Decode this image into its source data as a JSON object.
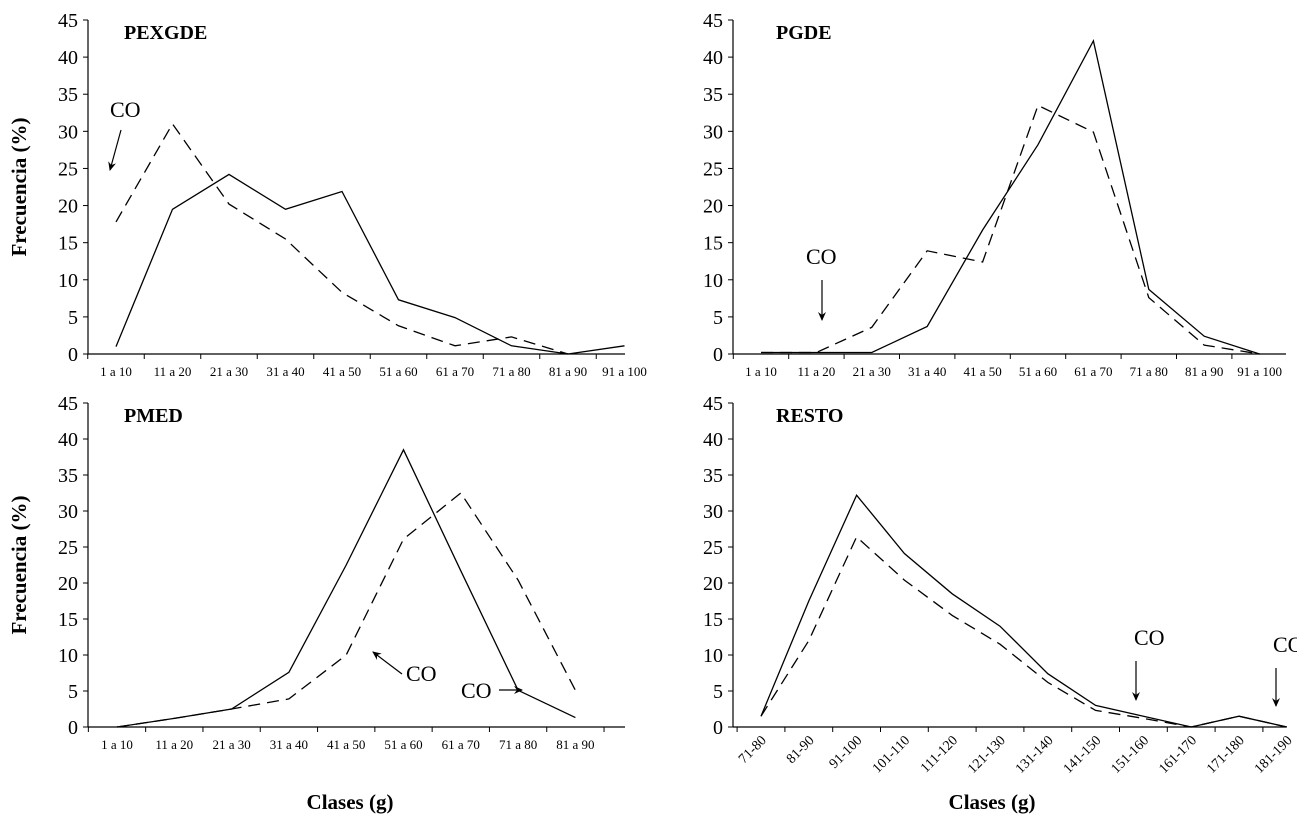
{
  "chart_data": [
    {
      "type": "line",
      "title": "PEXGDE",
      "ylabel": "Frecuencia (%)",
      "xlabel": "",
      "ylim": [
        0,
        45
      ],
      "yticks": [
        0,
        5,
        10,
        15,
        20,
        25,
        30,
        35,
        40,
        45
      ],
      "categories": [
        "1 a 10",
        "11 a 20",
        "21 a 30",
        "31 a 40",
        "41 a 50",
        "51 a 60",
        "61 a 70",
        "71 a 80",
        "81 a 90",
        "91 a 100"
      ],
      "series": [
        {
          "style": "solid",
          "values": [
            1,
            19.5,
            24.2,
            19.5,
            21.9,
            7.3,
            4.9,
            1.1,
            0,
            1.1
          ]
        },
        {
          "style": "dashed",
          "values": [
            17.8,
            31,
            20.2,
            15.5,
            8.3,
            3.8,
            1.1,
            2.3,
            0,
            null
          ]
        }
      ],
      "annotations": [
        {
          "text": "CO",
          "arrow": "down"
        }
      ]
    },
    {
      "type": "line",
      "title": "PGDE",
      "ylabel": "",
      "xlabel": "",
      "ylim": [
        0,
        45
      ],
      "yticks": [
        0,
        5,
        10,
        15,
        20,
        25,
        30,
        35,
        40,
        45
      ],
      "categories": [
        "1 a 10",
        "11 a 20",
        "21 a 30",
        "31 a 40",
        "41 a 50",
        "51 a 60",
        "61 a 70",
        "71 a 80",
        "81 a 90",
        "91 a 100"
      ],
      "series": [
        {
          "style": "solid",
          "values": [
            0.2,
            0.2,
            0.2,
            3.7,
            16.7,
            28.2,
            42.2,
            8.7,
            2.4,
            0
          ]
        },
        {
          "style": "dashed",
          "values": [
            0.2,
            0.2,
            3.6,
            13.9,
            12.4,
            33.5,
            29.9,
            7.6,
            1.2,
            0
          ]
        }
      ],
      "annotations": [
        {
          "text": "CO",
          "arrow": "down"
        }
      ]
    },
    {
      "type": "line",
      "title": "PMED",
      "ylabel": "Frecuencia (%)",
      "xlabel": "Clases (g)",
      "ylim": [
        0,
        45
      ],
      "yticks": [
        0,
        5,
        10,
        15,
        20,
        25,
        30,
        35,
        40,
        45
      ],
      "categories": [
        "1 a 10",
        "11 a 20",
        "21 a 30",
        "31 a 40",
        "41 a 50",
        "51 a 60",
        "61 a 70",
        "71 a 80",
        "81 a 90"
      ],
      "series": [
        {
          "style": "solid",
          "values": [
            0,
            1.2,
            2.5,
            7.6,
            22.5,
            38.5,
            21.7,
            5.1,
            1.3
          ]
        },
        {
          "style": "dashed",
          "values": [
            0,
            1.2,
            2.5,
            3.9,
            10,
            26.1,
            32.5,
            20.4,
            5.1
          ]
        }
      ],
      "annotations": [
        {
          "text": "CO",
          "arrow": "up-left"
        },
        {
          "text": "CO",
          "arrow": "right"
        }
      ]
    },
    {
      "type": "line",
      "title": "RESTO",
      "ylabel": "",
      "xlabel": "Clases (g)",
      "ylim": [
        0,
        45
      ],
      "yticks": [
        0,
        5,
        10,
        15,
        20,
        25,
        30,
        35,
        40,
        45
      ],
      "categories": [
        "71-80",
        "81-90",
        "91-100",
        "101-110",
        "111-120",
        "121-130",
        "131-140",
        "141-150",
        "151-160",
        "161-170",
        "171-180",
        "181-190"
      ],
      "series": [
        {
          "style": "solid",
          "values": [
            1.5,
            17.5,
            32.2,
            24.1,
            18.5,
            14,
            7.4,
            3,
            1.5,
            0,
            1.5,
            0
          ]
        },
        {
          "style": "dashed",
          "values": [
            1.5,
            12,
            26.4,
            20.4,
            15.5,
            11.5,
            6.2,
            2.3,
            1.2,
            0,
            1.5,
            0
          ]
        }
      ],
      "annotations": [
        {
          "text": "CO",
          "arrow": "down"
        },
        {
          "text": "CO",
          "arrow": "down"
        }
      ]
    }
  ]
}
